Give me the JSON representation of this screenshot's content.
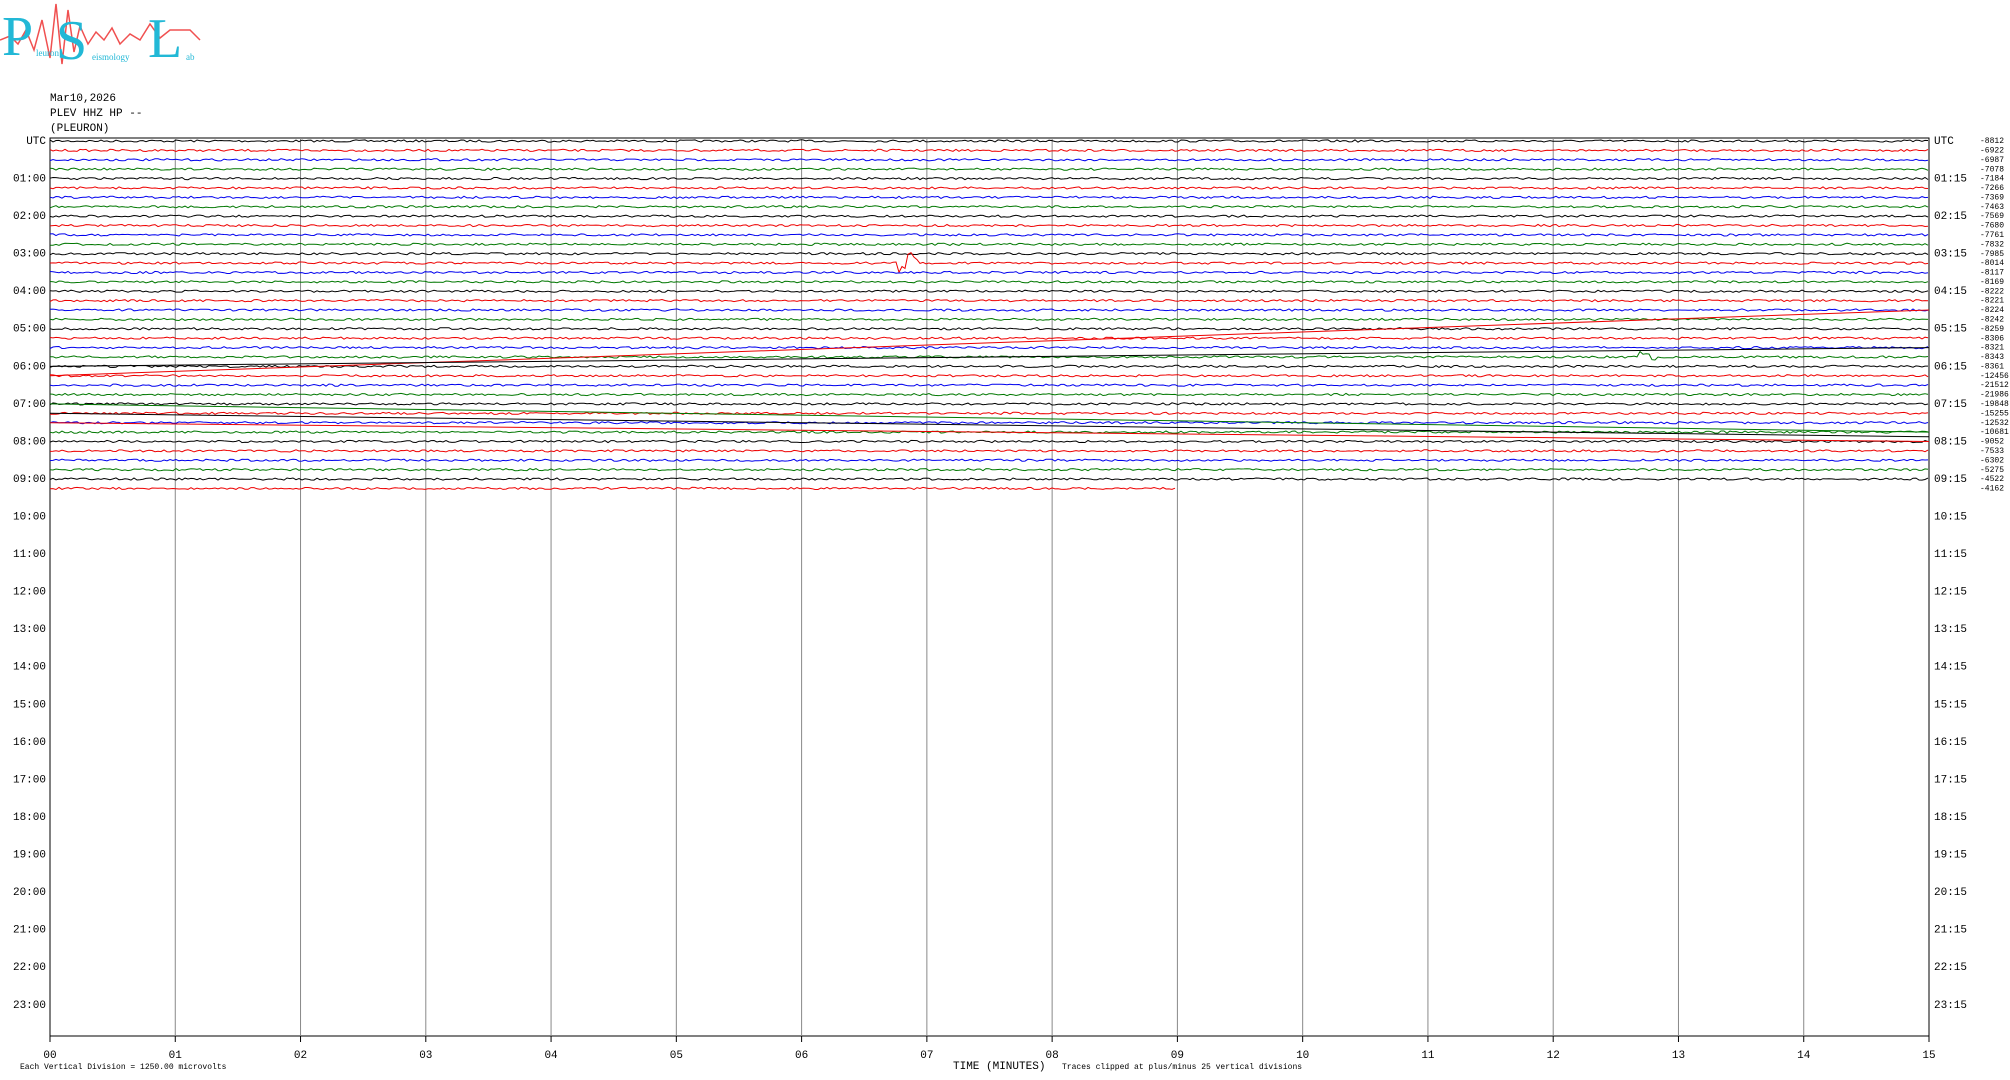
{
  "logo": {
    "p": "P",
    "s": "S",
    "l": "L",
    "p_rest": "leuron",
    "s_rest": "eismology",
    "l_rest": "ab"
  },
  "header": {
    "date": "Mar10,2026",
    "station": "PLEV HHZ HP --",
    "name": "(PLEURON)"
  },
  "left_labels": [
    "UTC",
    "01:00",
    "02:00",
    "03:00",
    "04:00",
    "05:00",
    "06:00",
    "07:00",
    "08:00",
    "09:00",
    "10:00",
    "11:00",
    "12:00",
    "13:00",
    "14:00",
    "15:00",
    "16:00",
    "17:00",
    "18:00",
    "19:00",
    "20:00",
    "21:00",
    "22:00",
    "23:00"
  ],
  "right_labels": [
    "UTC",
    "01:15",
    "02:15",
    "03:15",
    "04:15",
    "05:15",
    "06:15",
    "07:15",
    "08:15",
    "09:15",
    "10:15",
    "11:15",
    "12:15",
    "13:15",
    "14:15",
    "15:15",
    "16:15",
    "17:15",
    "18:15",
    "19:15",
    "20:15",
    "21:15",
    "22:15",
    "23:15"
  ],
  "offsets": [
    "-8812",
    "-6922",
    "-6987",
    "-7078",
    "-7184",
    "-7266",
    "-7369",
    "-7463",
    "-7569",
    "-7680",
    "-7761",
    "-7832",
    "-7985",
    "-8014",
    "-8117",
    "-8169",
    "-8222",
    "-8221",
    "-8224",
    "-8242",
    "-8259",
    "-8306",
    "-8321",
    "-8343",
    "-8361",
    "-12456",
    "-21512",
    "-21986",
    "-19848",
    "-15255",
    "-12532",
    "-10681",
    "-9052",
    "-7533",
    "-6302",
    "-5275",
    "-4522",
    "-4162"
  ],
  "x_labels": [
    "00",
    "01",
    "02",
    "03",
    "04",
    "05",
    "06",
    "07",
    "08",
    "09",
    "10",
    "11",
    "12",
    "13",
    "14",
    "15"
  ],
  "footer": {
    "scale": "Each Vertical Division = 1250.00 microvolts",
    "axis_title": "TIME (MINUTES)",
    "clip_note": "Traces clipped at plus/minus 25 vertical divisions"
  }
}
